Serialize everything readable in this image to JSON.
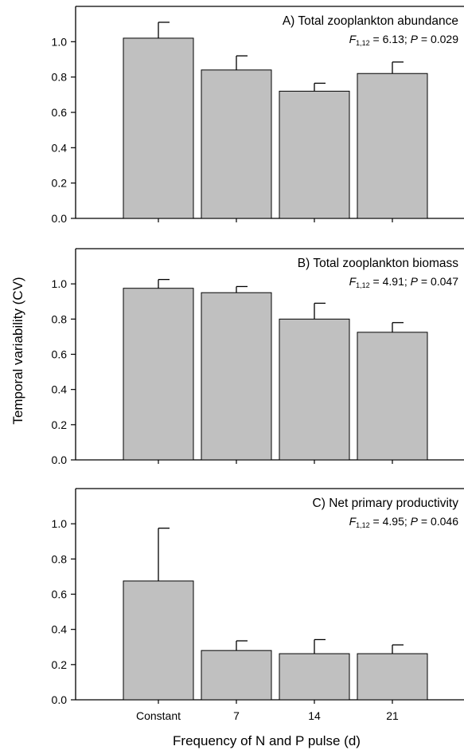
{
  "shared": {
    "ylabel": "Temporal variability (CV)",
    "xlabel": "Frequency of N and P pulse (d)",
    "categories": [
      "Constant",
      "7",
      "14",
      "21"
    ],
    "bar_color": "#c0c0c0",
    "edge_color": "#000000"
  },
  "chart_data": [
    {
      "type": "bar",
      "title": "A) Total zooplankton abundance",
      "stat": {
        "f_sub": "1,12",
        "f_value": "6.13",
        "p_value": "0.029"
      },
      "categories": [
        "Constant",
        "7",
        "14",
        "21"
      ],
      "values": [
        1.02,
        0.84,
        0.72,
        0.82
      ],
      "error_upper": [
        0.09,
        0.08,
        0.045,
        0.065
      ],
      "ylim": [
        0,
        1.2
      ],
      "yticks": [
        "0.0",
        "0.2",
        "0.4",
        "0.6",
        "0.8",
        "1.0"
      ]
    },
    {
      "type": "bar",
      "title": "B) Total zooplankton biomass",
      "stat": {
        "f_sub": "1,12",
        "f_value": "4.91",
        "p_value": "0.047"
      },
      "categories": [
        "Constant",
        "7",
        "14",
        "21"
      ],
      "values": [
        0.975,
        0.95,
        0.8,
        0.725
      ],
      "error_upper": [
        0.05,
        0.035,
        0.09,
        0.055
      ],
      "ylim": [
        0,
        1.2
      ],
      "yticks": [
        "0.0",
        "0.2",
        "0.4",
        "0.6",
        "0.8",
        "1.0"
      ]
    },
    {
      "type": "bar",
      "title": "C) Net primary productivity",
      "stat": {
        "f_sub": "1,12",
        "f_value": "4.95",
        "p_value": "0.046"
      },
      "categories": [
        "Constant",
        "7",
        "14",
        "21"
      ],
      "values": [
        0.675,
        0.28,
        0.262,
        0.262
      ],
      "error_upper": [
        0.3,
        0.055,
        0.08,
        0.05
      ],
      "ylim": [
        0,
        1.2
      ],
      "yticks": [
        "0.0",
        "0.2",
        "0.4",
        "0.6",
        "0.8",
        "1.0"
      ]
    }
  ]
}
